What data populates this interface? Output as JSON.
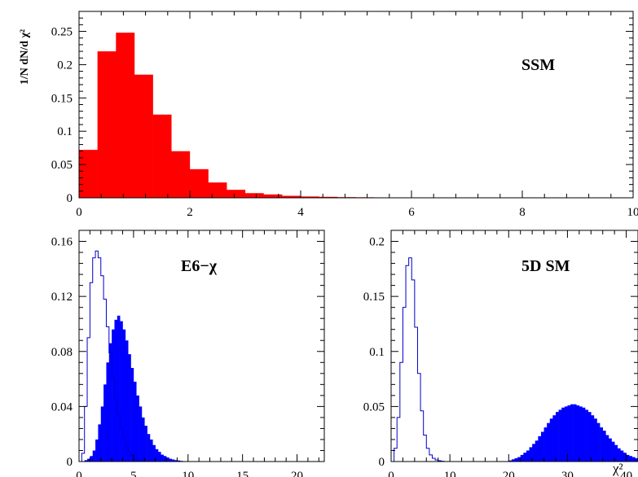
{
  "colors": {
    "ssm_fill": "#ff0000",
    "filled_blue": "#0000ff",
    "outline_blue": "#0000cc",
    "axis": "#000000"
  },
  "chart_data": [
    {
      "id": "top",
      "type": "histogram",
      "title": "SSM",
      "xlabel": "",
      "ylabel": "1/N dN/d χ²",
      "xlim": [
        0,
        10
      ],
      "ylim": [
        0,
        0.28
      ],
      "xticks": [
        0,
        2,
        4,
        6,
        8,
        10
      ],
      "xtick_labels": [
        "0",
        "2",
        "4",
        "6",
        "8",
        "10"
      ],
      "yticks": [
        0,
        0.05,
        0.1,
        0.15,
        0.2,
        0.25
      ],
      "ytick_labels": [
        "0",
        "0.05",
        "0.1",
        "0.15",
        "0.2",
        "0.25"
      ],
      "series": [
        {
          "style": "filled",
          "color": "#ff0000",
          "bin_start": 0,
          "bin_width": 0.333,
          "values": [
            0.072,
            0.22,
            0.248,
            0.185,
            0.125,
            0.07,
            0.043,
            0.023,
            0.012,
            0.007,
            0.005,
            0.003,
            0.002,
            0.0015,
            0.001,
            0.0008,
            0.0006,
            0.0005,
            0.0004,
            0.0003,
            0.0003,
            0.0002,
            0.0002,
            0.0002,
            0.0001,
            0.0001,
            0.0001,
            0.0001,
            0.0001,
            0.0001
          ]
        }
      ]
    },
    {
      "id": "bottom-left",
      "type": "histogram",
      "title": "E6−χ",
      "xlabel": "",
      "ylabel": "",
      "xlim": [
        0,
        22.5
      ],
      "ylim": [
        0,
        0.168
      ],
      "xticks": [
        0,
        5,
        10,
        15,
        20
      ],
      "xtick_labels": [
        "0",
        "5",
        "10",
        "15",
        "20"
      ],
      "yticks": [
        0,
        0.04,
        0.08,
        0.12,
        0.16
      ],
      "ytick_labels": [
        "0",
        "0.04",
        "0.08",
        "0.12",
        "0.16"
      ],
      "series": [
        {
          "style": "filled",
          "color": "#0000ff",
          "bin_start": 0,
          "bin_width": 0.25,
          "values": [
            0,
            0,
            0.001,
            0.002,
            0.004,
            0.008,
            0.016,
            0.027,
            0.04,
            0.056,
            0.072,
            0.086,
            0.096,
            0.103,
            0.106,
            0.102,
            0.096,
            0.088,
            0.078,
            0.068,
            0.058,
            0.048,
            0.04,
            0.032,
            0.026,
            0.02,
            0.016,
            0.012,
            0.009,
            0.007,
            0.005,
            0.004,
            0.003,
            0.002,
            0.0015,
            0.001,
            0.0008,
            0.0005,
            0.0003,
            0.0002,
            0.0001
          ]
        },
        {
          "style": "outline",
          "color": "#0000cc",
          "bin_start": 0,
          "bin_width": 0.25,
          "values": [
            0,
            0.006,
            0.04,
            0.09,
            0.13,
            0.148,
            0.153,
            0.148,
            0.135,
            0.118,
            0.098,
            0.079,
            0.061,
            0.046,
            0.034,
            0.024,
            0.017,
            0.011,
            0.007,
            0.004,
            0.002,
            0.001,
            0.0005
          ]
        }
      ]
    },
    {
      "id": "bottom-right",
      "type": "histogram",
      "title": "5D SM",
      "xlabel": "χ²",
      "ylabel": "",
      "xlim": [
        0,
        42
      ],
      "ylim": [
        0,
        0.21
      ],
      "xticks": [
        0,
        10,
        20,
        30,
        40
      ],
      "xtick_labels": [
        "0",
        "10",
        "20",
        "30",
        "40"
      ],
      "yticks": [
        0,
        0.05,
        0.1,
        0.15,
        0.2
      ],
      "ytick_labels": [
        "0",
        "0.05",
        "0.1",
        "0.15",
        "0.2"
      ],
      "series": [
        {
          "style": "filled",
          "color": "#0000ff",
          "bin_start": 20,
          "bin_width": 0.5,
          "values": [
            0.001,
            0.002,
            0.003,
            0.004,
            0.006,
            0.008,
            0.01,
            0.013,
            0.016,
            0.019,
            0.023,
            0.027,
            0.031,
            0.035,
            0.039,
            0.042,
            0.045,
            0.047,
            0.049,
            0.05,
            0.051,
            0.052,
            0.052,
            0.051,
            0.05,
            0.049,
            0.047,
            0.045,
            0.042,
            0.039,
            0.035,
            0.031,
            0.028,
            0.024,
            0.021,
            0.018,
            0.015,
            0.012,
            0.01,
            0.008,
            0.006,
            0.005,
            0.004,
            0.003
          ]
        },
        {
          "style": "outline",
          "color": "#0000cc",
          "bin_start": 0,
          "bin_width": 0.5,
          "values": [
            0,
            0.012,
            0.04,
            0.09,
            0.14,
            0.178,
            0.185,
            0.165,
            0.122,
            0.08,
            0.046,
            0.024,
            0.012,
            0.006,
            0.003,
            0.0015,
            0.0007,
            0.0003
          ]
        }
      ]
    }
  ]
}
